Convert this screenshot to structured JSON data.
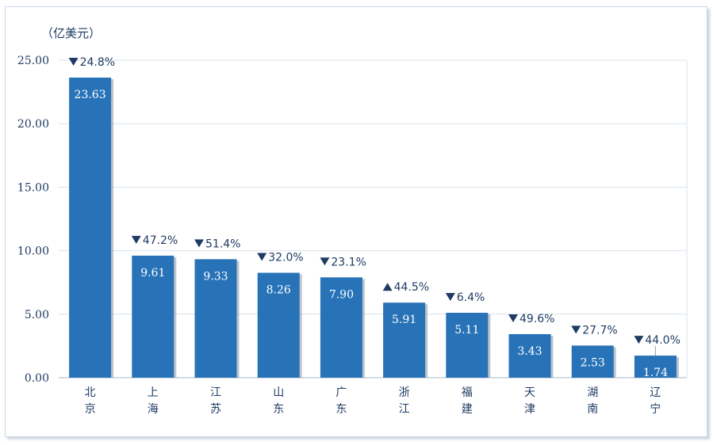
{
  "chart_data": {
    "type": "bar",
    "unit_label": "（亿美元）",
    "categories": [
      "北京",
      "上海",
      "江苏",
      "山东",
      "广东",
      "浙江",
      "福建",
      "天津",
      "湖南",
      "辽宁"
    ],
    "values": [
      23.63,
      9.61,
      9.33,
      8.26,
      7.9,
      5.91,
      5.11,
      3.43,
      2.53,
      1.74
    ],
    "value_labels": [
      "23.63",
      "9.61",
      "9.33",
      "8.26",
      "7.90",
      "5.91",
      "5.11",
      "3.43",
      "2.53",
      "1.74"
    ],
    "changes": [
      {
        "direction": "down",
        "text": "24.8%"
      },
      {
        "direction": "down",
        "text": "47.2%"
      },
      {
        "direction": "down",
        "text": "51.4%"
      },
      {
        "direction": "down",
        "text": "32.0%"
      },
      {
        "direction": "down",
        "text": "23.1%"
      },
      {
        "direction": "up",
        "text": "44.5%"
      },
      {
        "direction": "down",
        "text": "6.4%"
      },
      {
        "direction": "down",
        "text": "49.6%"
      },
      {
        "direction": "down",
        "text": "27.7%"
      },
      {
        "direction": "down",
        "text": "44.0%"
      }
    ],
    "y_ticks": [
      "0.00",
      "5.00",
      "10.00",
      "15.00",
      "20.00",
      "25.00"
    ],
    "ylim": [
      0,
      25
    ],
    "grid": true,
    "colors": {
      "bar": "#2873b8",
      "text": "#1f3b63",
      "grid": "#d9e2ec",
      "axis": "#aab8c8"
    }
  }
}
